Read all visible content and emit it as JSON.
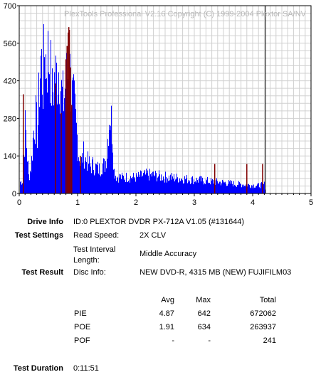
{
  "chart_data": {
    "type": "bar",
    "title": "PlexTools Professional V2.16 Copyright (C) 1999-2004 Plextor SA/NV",
    "xlim": [
      0,
      5
    ],
    "ylim": [
      0,
      700
    ],
    "x_ticks": [
      "0",
      "1",
      "2",
      "3",
      "4",
      "5"
    ],
    "y_ticks": [
      "0",
      "140",
      "280",
      "420",
      "560",
      "700"
    ],
    "end_marker_x": 4.22,
    "grid": true,
    "series": [
      {
        "kind": "PIE",
        "color": "#0000ff",
        "points": [
          [
            0.0,
            50
          ],
          [
            0.05,
            55
          ],
          [
            0.1,
            300
          ],
          [
            0.13,
            180
          ],
          [
            0.16,
            70
          ],
          [
            0.2,
            120
          ],
          [
            0.25,
            300
          ],
          [
            0.28,
            330
          ],
          [
            0.31,
            260
          ],
          [
            0.34,
            480
          ],
          [
            0.37,
            600
          ],
          [
            0.4,
            470
          ],
          [
            0.43,
            640
          ],
          [
            0.46,
            570
          ],
          [
            0.49,
            600
          ],
          [
            0.52,
            580
          ],
          [
            0.56,
            430
          ],
          [
            0.6,
            500
          ],
          [
            0.64,
            520
          ],
          [
            0.68,
            560
          ],
          [
            0.72,
            440
          ],
          [
            0.75,
            400
          ],
          [
            0.78,
            460
          ],
          [
            0.82,
            520
          ],
          [
            0.86,
            540
          ],
          [
            0.9,
            420
          ],
          [
            0.94,
            380
          ],
          [
            0.98,
            270
          ],
          [
            1.02,
            160
          ],
          [
            1.06,
            140
          ],
          [
            1.1,
            175
          ],
          [
            1.14,
            145
          ],
          [
            1.18,
            135
          ],
          [
            1.22,
            120
          ],
          [
            1.26,
            125
          ],
          [
            1.3,
            115
          ],
          [
            1.34,
            110
          ],
          [
            1.38,
            105
          ],
          [
            1.42,
            130
          ],
          [
            1.46,
            120
          ],
          [
            1.5,
            180
          ],
          [
            1.53,
            330
          ],
          [
            1.56,
            350
          ],
          [
            1.59,
            280
          ],
          [
            1.62,
            100
          ],
          [
            1.66,
            75
          ],
          [
            1.75,
            70
          ],
          [
            1.85,
            72
          ],
          [
            2.0,
            70
          ],
          [
            2.1,
            78
          ],
          [
            2.2,
            82
          ],
          [
            2.3,
            80
          ],
          [
            2.4,
            75
          ],
          [
            2.5,
            72
          ],
          [
            2.6,
            70
          ],
          [
            2.7,
            68
          ],
          [
            2.8,
            66
          ],
          [
            2.9,
            62
          ],
          [
            3.0,
            60
          ],
          [
            3.1,
            58
          ],
          [
            3.2,
            55
          ],
          [
            3.3,
            52
          ],
          [
            3.4,
            50
          ],
          [
            3.5,
            48
          ],
          [
            3.6,
            45
          ],
          [
            3.7,
            42
          ],
          [
            3.8,
            40
          ],
          [
            3.9,
            38
          ],
          [
            4.0,
            36
          ],
          [
            4.1,
            35
          ],
          [
            4.2,
            40
          ],
          [
            4.22,
            0
          ]
        ]
      },
      {
        "kind": "PIF",
        "color": "#800000",
        "points": [
          [
            0.07,
            370
          ],
          [
            0.62,
            410
          ],
          [
            0.72,
            300
          ],
          [
            0.8,
            500
          ],
          [
            0.82,
            550
          ],
          [
            0.84,
            600
          ],
          [
            0.85,
            620
          ],
          [
            0.86,
            610
          ],
          [
            0.88,
            470
          ],
          [
            0.9,
            330
          ],
          [
            1.05,
            140
          ],
          [
            3.35,
            110
          ],
          [
            3.9,
            110
          ],
          [
            4.17,
            110
          ]
        ]
      }
    ]
  },
  "info": {
    "drive_info_label": "Drive Info",
    "drive_info_value": "ID:0 PLEXTOR DVDR PX-712A V1.05 (#131644)",
    "test_settings_label": "Test Settings",
    "read_speed_label": "Read Speed:",
    "read_speed_value": "2X CLV",
    "interval_label_1": "Test Interval",
    "interval_label_2": "Length:",
    "interval_value": "Middle Accuracy",
    "test_result_label": "Test Result",
    "disc_info_label": "Disc Info:",
    "disc_info_value": "NEW DVD-R, 4315 MB (NEW) FUJIFILM03",
    "col_avg": "Avg",
    "col_max": "Max",
    "col_total": "Total",
    "rows": [
      {
        "name": "PIE",
        "avg": "4.87",
        "max": "642",
        "total": "672062"
      },
      {
        "name": "POE",
        "avg": "1.91",
        "max": "634",
        "total": "263937"
      },
      {
        "name": "POF",
        "avg": "-",
        "max": "-",
        "total": "241"
      }
    ],
    "test_duration_label": "Test Duration",
    "test_duration_value": "0:11:51"
  }
}
